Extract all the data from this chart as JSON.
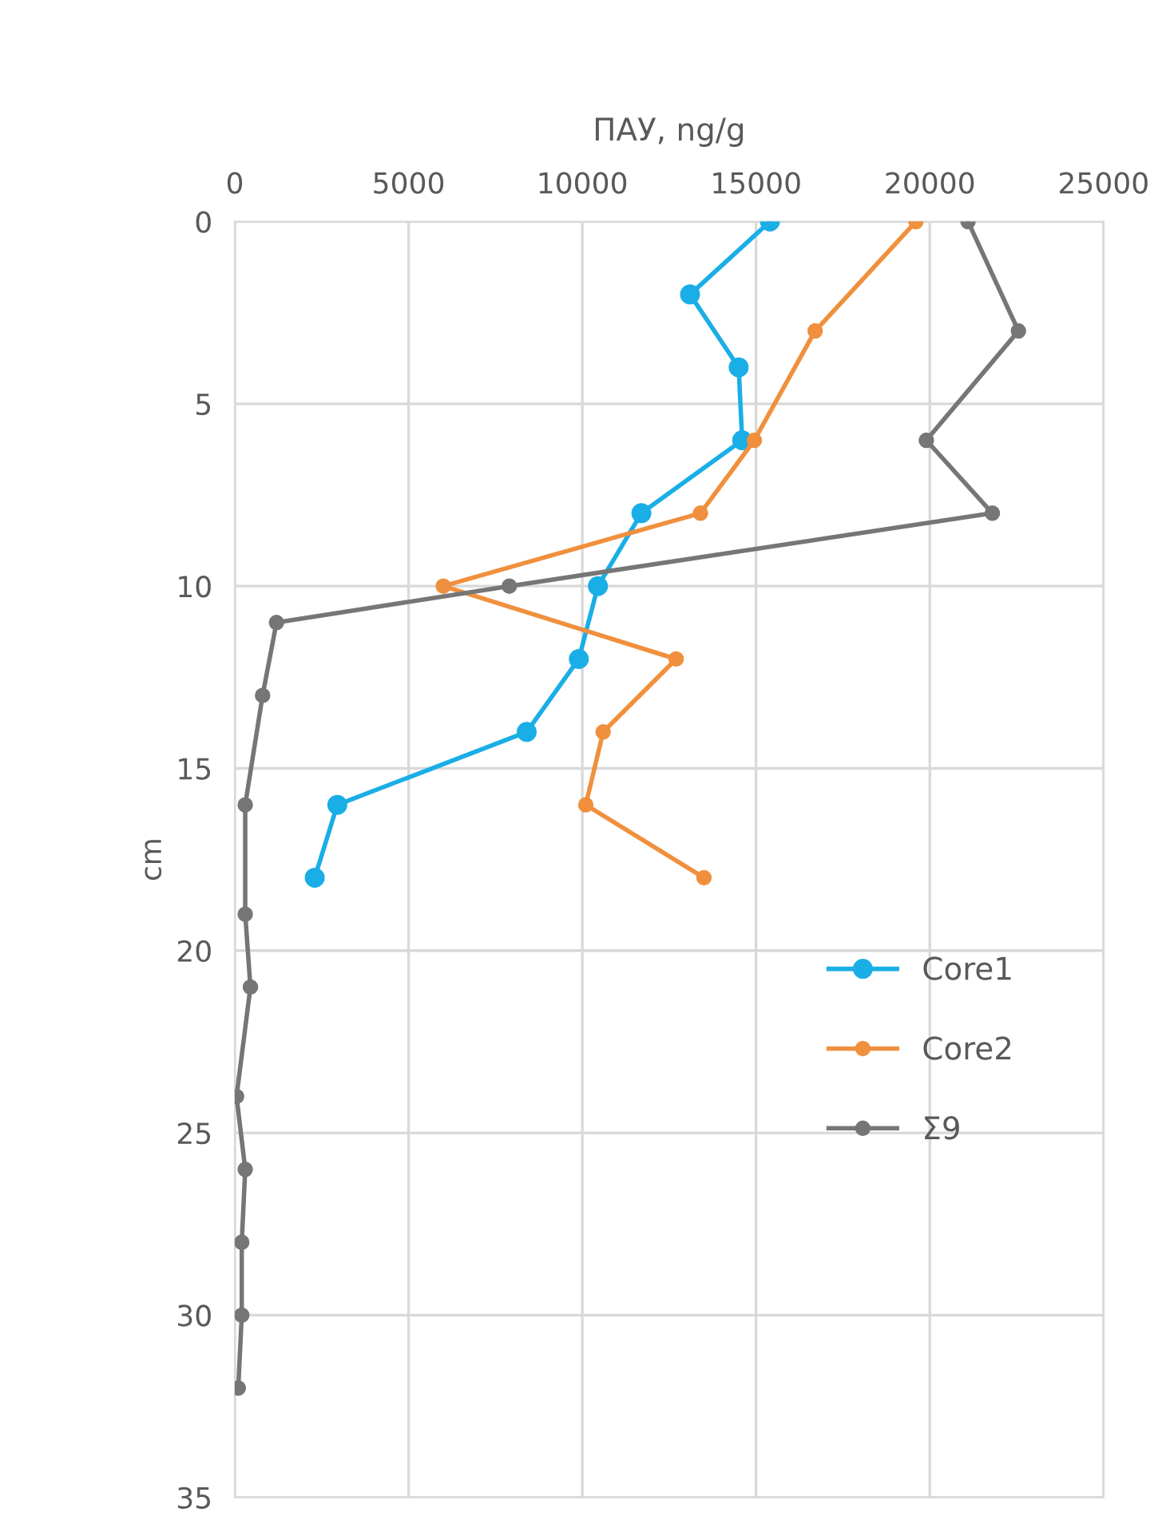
{
  "chart_data": {
    "type": "line",
    "xlabel": "ПАУ, ng/g",
    "ylabel": "cm",
    "xlim": [
      0,
      25000
    ],
    "xticks": [
      0,
      5000,
      10000,
      15000,
      20000,
      25000
    ],
    "ylim": [
      35,
      0
    ],
    "yticks": [
      0,
      5,
      10,
      15,
      20,
      25,
      30,
      35
    ],
    "grid": true,
    "legend": "right",
    "marker": "circle",
    "line_style": "solid",
    "series": [
      {
        "name": "Core1",
        "color": "#1aaee6",
        "x": [
          15400,
          13100,
          14500,
          14600,
          11700,
          10450,
          9900,
          8400,
          2950,
          2300
        ],
        "values": [
          0,
          2,
          4,
          6,
          8,
          10,
          12,
          14,
          16,
          18
        ]
      },
      {
        "name": "Core2",
        "color": "#f0903e",
        "x": [
          19600,
          16700,
          14950,
          13400,
          6000,
          12700,
          10600,
          10100,
          13500
        ],
        "values": [
          0,
          3,
          6,
          8,
          10,
          12,
          14,
          16,
          18
        ]
      },
      {
        "name": "Σ9",
        "color": "#767676",
        "x": [
          21100,
          22550,
          19900,
          21800,
          7900,
          1200,
          800,
          300,
          300,
          450,
          50,
          300,
          200,
          200,
          100
        ],
        "values": [
          0,
          3,
          6,
          8,
          10,
          11,
          13,
          16,
          19,
          21,
          24,
          26,
          28,
          30,
          32
        ]
      }
    ]
  }
}
